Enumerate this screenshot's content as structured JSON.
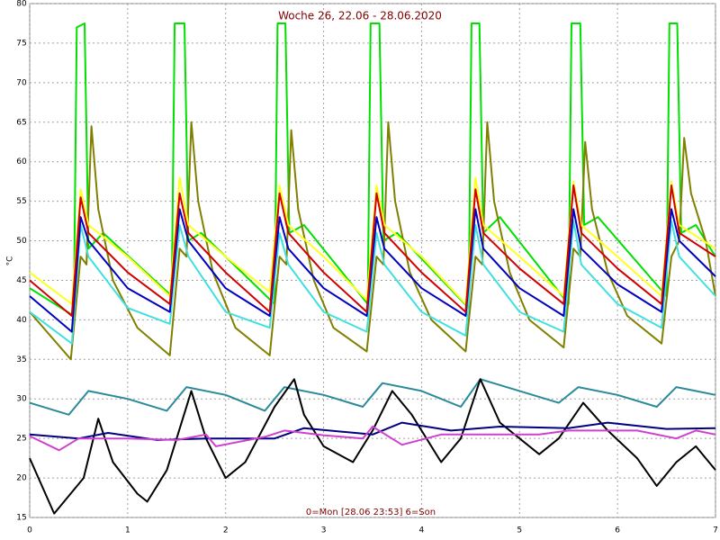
{
  "chart_data": {
    "type": "line",
    "title": "Woche 26, 22.06 - 28.06.2020",
    "xlabel": "0=Mon [28.06 23:53] 6=Son",
    "ylabel": "°C",
    "xlim": [
      0,
      7
    ],
    "xticks": [
      0,
      1,
      2,
      3,
      4,
      5,
      6,
      7
    ],
    "ylim": [
      15,
      80
    ],
    "yticks": [
      15,
      20,
      25,
      30,
      35,
      40,
      45,
      50,
      55,
      60,
      65,
      70,
      75,
      80
    ],
    "grid": true,
    "series": [
      {
        "color": "#00e000",
        "x": [
          0,
          0.45,
          0.48,
          0.56,
          0.6,
          0.75,
          1.45,
          1.48,
          1.58,
          1.62,
          1.75,
          2.5,
          2.53,
          2.61,
          2.65,
          2.8,
          3.45,
          3.48,
          3.57,
          3.61,
          3.75,
          4.48,
          4.51,
          4.59,
          4.63,
          4.8,
          5.5,
          5.53,
          5.62,
          5.66,
          5.8,
          6.5,
          6.53,
          6.61,
          6.65,
          6.8,
          7
        ],
        "values": [
          44,
          40.5,
          77,
          77.5,
          49,
          51,
          43,
          77.5,
          77.5,
          50,
          51,
          42,
          77.5,
          77.5,
          51,
          52,
          42,
          77.5,
          77.5,
          50,
          51,
          41.5,
          77.5,
          77.5,
          51,
          53,
          42,
          77.5,
          77.5,
          52,
          53,
          43,
          77.5,
          77.5,
          51,
          52,
          48
        ]
      },
      {
        "color": "#808000",
        "x": [
          0,
          0.42,
          0.52,
          0.58,
          0.63,
          0.7,
          0.85,
          1.1,
          1.43,
          1.53,
          1.6,
          1.65,
          1.72,
          1.87,
          2.1,
          2.45,
          2.55,
          2.62,
          2.67,
          2.74,
          2.9,
          3.1,
          3.44,
          3.54,
          3.61,
          3.66,
          3.73,
          3.88,
          4.1,
          4.45,
          4.55,
          4.62,
          4.67,
          4.74,
          4.9,
          5.1,
          5.45,
          5.55,
          5.62,
          5.67,
          5.74,
          5.9,
          6.1,
          6.45,
          6.55,
          6.63,
          6.68,
          6.75,
          6.9,
          7
        ],
        "values": [
          41,
          35,
          48,
          47,
          64.5,
          54,
          45,
          39,
          35.5,
          49,
          48,
          65,
          55,
          46,
          39,
          35.5,
          48,
          47,
          64,
          54,
          45,
          39,
          36,
          48,
          47,
          65,
          55,
          46,
          40,
          36,
          48,
          47,
          65,
          55,
          46,
          40,
          36.5,
          49,
          48,
          62.5,
          54,
          46,
          40.5,
          37,
          48,
          50,
          63,
          56,
          50,
          43
        ]
      },
      {
        "color": "#ffff20",
        "x": [
          0,
          0.43,
          0.52,
          0.6,
          1.0,
          1.43,
          1.53,
          1.62,
          2.0,
          2.45,
          2.55,
          2.64,
          3.0,
          3.44,
          3.54,
          3.62,
          4.0,
          4.45,
          4.55,
          4.63,
          5.0,
          5.45,
          5.55,
          5.63,
          6.0,
          6.45,
          6.55,
          6.63,
          7
        ],
        "values": [
          46,
          42,
          56.5,
          52,
          48,
          43,
          58,
          52,
          48,
          43.5,
          57,
          52,
          48,
          42.5,
          57,
          52,
          48,
          42,
          58,
          52,
          48,
          43,
          57.5,
          52,
          48,
          43,
          57.5,
          52,
          49
        ]
      },
      {
        "color": "#40e0e0",
        "x": [
          0,
          0.43,
          0.52,
          0.6,
          1.0,
          1.43,
          1.53,
          1.62,
          2.0,
          2.45,
          2.55,
          2.64,
          3.0,
          3.44,
          3.54,
          3.62,
          4.0,
          4.45,
          4.55,
          4.63,
          5.0,
          5.45,
          5.55,
          5.63,
          6.0,
          6.45,
          6.55,
          6.63,
          7
        ],
        "values": [
          41,
          37,
          52,
          48,
          41.5,
          39.5,
          52,
          48,
          41,
          39,
          51,
          47,
          41,
          38.5,
          51,
          47,
          41,
          38,
          52,
          47,
          41,
          38.5,
          52.5,
          47,
          42,
          39,
          52.5,
          48,
          43
        ]
      },
      {
        "color": "#0000c0",
        "x": [
          0,
          0.43,
          0.52,
          0.6,
          1.0,
          1.43,
          1.53,
          1.62,
          2.0,
          2.45,
          2.55,
          2.64,
          3.0,
          3.44,
          3.54,
          3.62,
          4.0,
          4.45,
          4.55,
          4.63,
          5.0,
          5.45,
          5.55,
          5.63,
          6.0,
          6.45,
          6.55,
          6.63,
          7
        ],
        "values": [
          43,
          38.5,
          53,
          50,
          44,
          41,
          54,
          50,
          44,
          40.5,
          53,
          49,
          44,
          40.5,
          53,
          49,
          44,
          40.5,
          54,
          49,
          44,
          40.5,
          54,
          49,
          44.5,
          41,
          54,
          50,
          45.5
        ]
      },
      {
        "color": "#d00000",
        "x": [
          0,
          0.43,
          0.52,
          0.6,
          1.0,
          1.43,
          1.53,
          1.62,
          2.0,
          2.45,
          2.55,
          2.64,
          3.0,
          3.44,
          3.54,
          3.62,
          4.0,
          4.45,
          4.55,
          4.63,
          5.0,
          5.45,
          5.55,
          5.63,
          6.0,
          6.45,
          6.55,
          6.63,
          7
        ],
        "values": [
          45,
          40.5,
          55.5,
          51,
          46,
          42,
          56,
          51,
          46,
          41,
          56,
          51,
          46,
          41,
          56,
          51,
          46,
          41,
          56.5,
          51,
          46.5,
          42,
          57,
          51,
          46.5,
          42,
          57,
          51,
          48
        ]
      },
      {
        "color": "#2a8a9a",
        "x": [
          0,
          0.4,
          0.6,
          1.0,
          1.4,
          1.6,
          2.0,
          2.4,
          2.6,
          3.0,
          3.4,
          3.6,
          4.0,
          4.4,
          4.6,
          5.0,
          5.4,
          5.6,
          6.0,
          6.4,
          6.6,
          7
        ],
        "values": [
          29.5,
          28,
          31,
          30,
          28.5,
          31.5,
          30.5,
          28.5,
          31.5,
          30.5,
          29,
          32,
          31,
          29,
          32.5,
          31,
          29.5,
          31.5,
          30.5,
          29,
          31.5,
          30.5
        ]
      },
      {
        "color": "#000000",
        "x": [
          0,
          0.25,
          0.55,
          0.7,
          0.85,
          1.1,
          1.2,
          1.4,
          1.65,
          1.8,
          2.0,
          2.2,
          2.5,
          2.7,
          2.8,
          3.0,
          3.3,
          3.5,
          3.7,
          3.9,
          4.2,
          4.4,
          4.6,
          4.8,
          5.2,
          5.4,
          5.65,
          5.9,
          6.2,
          6.4,
          6.6,
          6.8,
          7
        ],
        "values": [
          22.5,
          15.5,
          20,
          27.5,
          22,
          18,
          17,
          21,
          31,
          25,
          20,
          22,
          29,
          32.5,
          28,
          24,
          22,
          26,
          31,
          28,
          22,
          25,
          32.5,
          27,
          23,
          25,
          29.5,
          26,
          22.5,
          19,
          22,
          24,
          21
        ]
      },
      {
        "color": "#000080",
        "x": [
          0,
          0.5,
          0.8,
          1.3,
          1.8,
          2.5,
          2.8,
          3.5,
          3.8,
          4.3,
          4.8,
          5.5,
          5.9,
          6.5,
          7
        ],
        "values": [
          25.5,
          25,
          25.7,
          24.8,
          25,
          25,
          26.3,
          25.5,
          27,
          26,
          26.5,
          26.3,
          27,
          26.2,
          26.3
        ]
      },
      {
        "color": "#d040d0",
        "x": [
          0,
          0.3,
          0.5,
          1.0,
          1.5,
          1.8,
          1.9,
          2.4,
          2.6,
          3.0,
          3.4,
          3.5,
          3.8,
          4.2,
          5.2,
          5.5,
          6.2,
          6.6,
          6.8,
          7
        ],
        "values": [
          25.3,
          23.5,
          25,
          25,
          24.8,
          25.5,
          24,
          25.2,
          26,
          25.4,
          25,
          26.5,
          24.2,
          25.5,
          25.5,
          26,
          26,
          25,
          26,
          25.5
        ]
      }
    ]
  }
}
